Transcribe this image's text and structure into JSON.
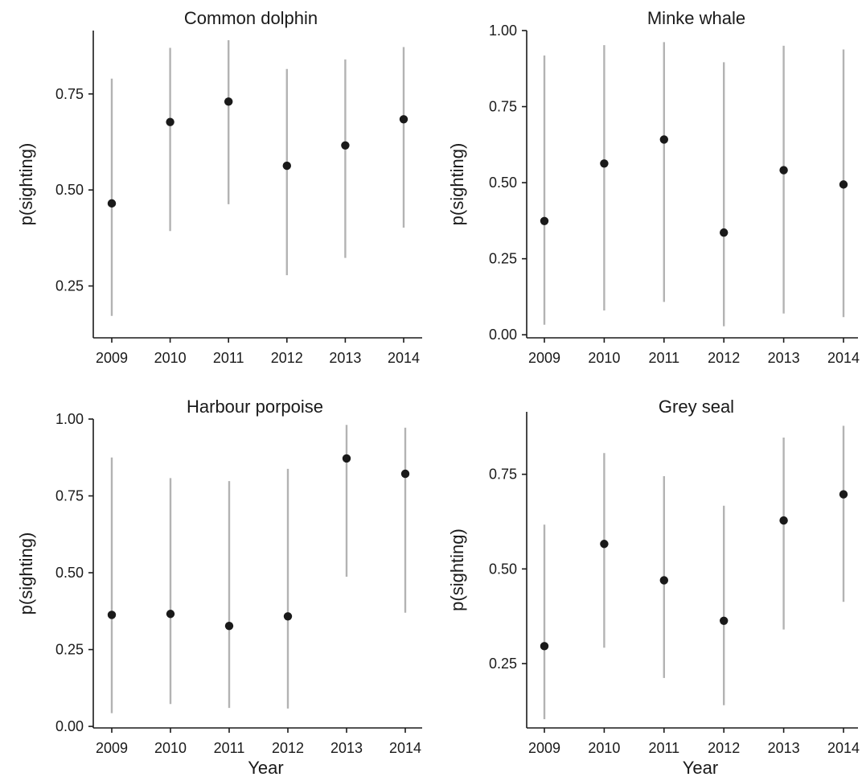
{
  "chart_data": [
    {
      "type": "scatter",
      "title": "Common dolphin",
      "xlabel": "",
      "ylabel": "p(sighting)",
      "categories": [
        "2009",
        "2010",
        "2011",
        "2012",
        "2013",
        "2014"
      ],
      "ylim": [
        0.115,
        0.915
      ],
      "yticks": [
        "0.25",
        "0.50",
        "0.75"
      ],
      "grid": false,
      "series": [
        {
          "values": [
            0.465,
            0.677,
            0.73,
            0.563,
            0.616,
            0.684
          ],
          "lower": [
            0.172,
            0.393,
            0.463,
            0.278,
            0.323,
            0.402
          ],
          "upper": [
            0.79,
            0.87,
            0.89,
            0.815,
            0.84,
            0.872
          ]
        }
      ]
    },
    {
      "type": "scatter",
      "title": "Minke whale",
      "xlabel": "",
      "ylabel": "p(sighting)",
      "categories": [
        "2009",
        "2010",
        "2011",
        "2012",
        "2013",
        "2014"
      ],
      "ylim": [
        -0.01,
        1.0
      ],
      "yticks": [
        "0.00",
        "0.25",
        "0.50",
        "0.75",
        "1.00"
      ],
      "grid": false,
      "series": [
        {
          "values": [
            0.374,
            0.563,
            0.642,
            0.336,
            0.541,
            0.494
          ],
          "lower": [
            0.033,
            0.08,
            0.108,
            0.028,
            0.07,
            0.058
          ],
          "upper": [
            0.918,
            0.952,
            0.962,
            0.896,
            0.95,
            0.938
          ]
        }
      ]
    },
    {
      "type": "scatter",
      "title": "Harbour porpoise",
      "xlabel": "Year",
      "ylabel": "p(sighting)",
      "categories": [
        "2009",
        "2010",
        "2011",
        "2012",
        "2013",
        "2014"
      ],
      "ylim": [
        -0.005,
        1.0
      ],
      "yticks": [
        "0.00",
        "0.25",
        "0.50",
        "0.75",
        "1.00"
      ],
      "grid": false,
      "series": [
        {
          "values": [
            0.363,
            0.366,
            0.327,
            0.358,
            0.872,
            0.822
          ],
          "lower": [
            0.043,
            0.073,
            0.06,
            0.058,
            0.487,
            0.37
          ],
          "upper": [
            0.875,
            0.808,
            0.798,
            0.838,
            0.981,
            0.972
          ]
        }
      ]
    },
    {
      "type": "scatter",
      "title": "Grey seal",
      "xlabel": "Year",
      "ylabel": "p(sighting)",
      "categories": [
        "2009",
        "2010",
        "2011",
        "2012",
        "2013",
        "2014"
      ],
      "ylim": [
        0.08,
        0.915
      ],
      "yticks": [
        "0.25",
        "0.50",
        "0.75"
      ],
      "grid": false,
      "series": [
        {
          "values": [
            0.296,
            0.566,
            0.47,
            0.363,
            0.628,
            0.697
          ],
          "lower": [
            0.103,
            0.292,
            0.212,
            0.14,
            0.34,
            0.413
          ],
          "upper": [
            0.617,
            0.806,
            0.745,
            0.667,
            0.847,
            0.878
          ]
        }
      ]
    }
  ],
  "colors": {
    "point": "#1a1a1a",
    "interval": "#b3b3b3",
    "axis": "#1a1a1a"
  }
}
